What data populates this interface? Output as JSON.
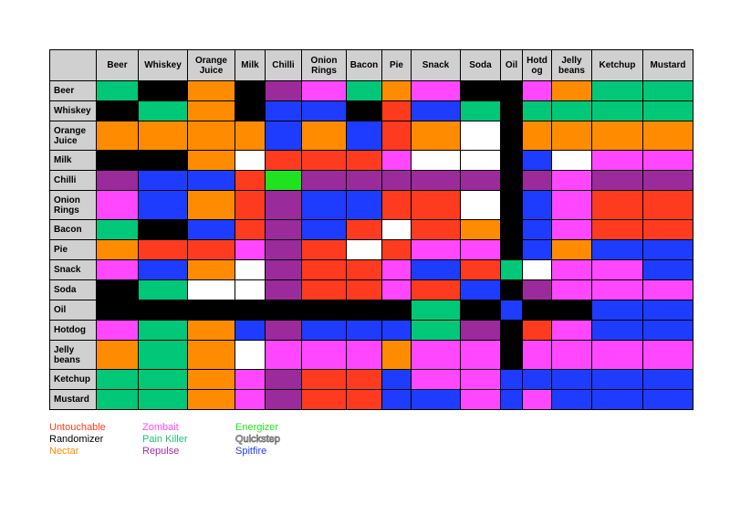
{
  "columns": [
    "Beer",
    "Whiskey",
    "Orange Juice",
    "Milk",
    "Chilli",
    "Onion Rings",
    "Bacon",
    "Pie",
    "Snack",
    "Soda",
    "Oil",
    "Hotdog",
    "Jelly beans",
    "Ketchup",
    "Mustard"
  ],
  "column_labels": [
    "Beer",
    "Whiskey",
    "Orange\nJuice",
    "Milk",
    "Chilli",
    "Onion\nRings",
    "Bacon",
    "Pie",
    "Snack",
    "Soda",
    "Oil",
    "Hotd\nog",
    "Jelly\nbeans",
    "Ketchup",
    "Mustard"
  ],
  "row_labels": [
    "Beer",
    "Whiskey",
    "Orange\nJuice",
    "Milk",
    "Chilli",
    "Onion\nRings",
    "Bacon",
    "Pie",
    "Snack",
    "Soda",
    "Oil",
    "Hotdog",
    "Jelly\nbeans",
    "Ketchup",
    "Mustard"
  ],
  "cells": [
    [
      "Pain Killer",
      "Randomizer",
      "Nectar",
      "Randomizer",
      "Repulse",
      "Zombait",
      "Pain Killer",
      "Nectar",
      "Zombait",
      "Randomizer",
      "Randomizer",
      "Zombait",
      "Nectar",
      "Pain Killer",
      "Pain Killer"
    ],
    [
      "Randomizer",
      "Pain Killer",
      "Nectar",
      "Randomizer",
      "Spitfire",
      "Spitfire",
      "Randomizer",
      "Untouchable",
      "Spitfire",
      "Pain Killer",
      "Randomizer",
      "Pain Killer",
      "Pain Killer",
      "Pain Killer",
      "Pain Killer"
    ],
    [
      "Nectar",
      "Nectar",
      "Nectar",
      "Nectar",
      "Spitfire",
      "Nectar",
      "Spitfire",
      "Untouchable",
      "Nectar",
      "Quickstep",
      "Randomizer",
      "Nectar",
      "Nectar",
      "Nectar",
      "Nectar"
    ],
    [
      "Randomizer",
      "Randomizer",
      "Nectar",
      "Quickstep",
      "Untouchable",
      "Untouchable",
      "Untouchable",
      "Zombait",
      "Quickstep",
      "Quickstep",
      "Randomizer",
      "Spitfire",
      "Quickstep",
      "Zombait",
      "Zombait"
    ],
    [
      "Repulse",
      "Spitfire",
      "Spitfire",
      "Untouchable",
      "Energizer",
      "Repulse",
      "Repulse",
      "Repulse",
      "Repulse",
      "Repulse",
      "Randomizer",
      "Repulse",
      "Zombait",
      "Repulse",
      "Repulse"
    ],
    [
      "Zombait",
      "Spitfire",
      "Nectar",
      "Untouchable",
      "Repulse",
      "Spitfire",
      "Spitfire",
      "Untouchable",
      "Untouchable",
      "Quickstep",
      "Randomizer",
      "Spitfire",
      "Zombait",
      "Untouchable",
      "Untouchable"
    ],
    [
      "Pain Killer",
      "Randomizer",
      "Spitfire",
      "Untouchable",
      "Repulse",
      "Spitfire",
      "Untouchable",
      "Quickstep",
      "Untouchable",
      "Nectar",
      "Randomizer",
      "Spitfire",
      "Zombait",
      "Untouchable",
      "Untouchable"
    ],
    [
      "Nectar",
      "Untouchable",
      "Untouchable",
      "Zombait",
      "Repulse",
      "Untouchable",
      "Quickstep",
      "Untouchable",
      "Zombait",
      "Zombait",
      "Randomizer",
      "Spitfire",
      "Nectar",
      "Spitfire",
      "Spitfire"
    ],
    [
      "Zombait",
      "Spitfire",
      "Nectar",
      "Quickstep",
      "Repulse",
      "Untouchable",
      "Untouchable",
      "Zombait",
      "Spitfire",
      "Untouchable",
      "Pain Killer",
      "Quickstep",
      "Zombait",
      "Zombait",
      "Spitfire"
    ],
    [
      "Randomizer",
      "Pain Killer",
      "Quickstep",
      "Quickstep",
      "Repulse",
      "Untouchable",
      "Untouchable",
      "Zombait",
      "Untouchable",
      "Spitfire",
      "Randomizer",
      "Repulse",
      "Zombait",
      "Zombait",
      "Zombait"
    ],
    [
      "Randomizer",
      "Randomizer",
      "Randomizer",
      "Randomizer",
      "Randomizer",
      "Randomizer",
      "Randomizer",
      "Randomizer",
      "Pain Killer",
      "Randomizer",
      "Spitfire",
      "Randomizer",
      "Randomizer",
      "Spitfire",
      "Spitfire"
    ],
    [
      "Zombait",
      "Pain Killer",
      "Nectar",
      "Spitfire",
      "Repulse",
      "Spitfire",
      "Spitfire",
      "Spitfire",
      "Pain Killer",
      "Repulse",
      "Randomizer",
      "Untouchable",
      "Zombait",
      "Spitfire",
      "Spitfire"
    ],
    [
      "Nectar",
      "Pain Killer",
      "Nectar",
      "Quickstep",
      "Zombait",
      "Zombait",
      "Zombait",
      "Nectar",
      "Zombait",
      "Zombait",
      "Randomizer",
      "Zombait",
      "Zombait",
      "Zombait",
      "Zombait"
    ],
    [
      "Pain Killer",
      "Pain Killer",
      "Nectar",
      "Zombait",
      "Repulse",
      "Untouchable",
      "Untouchable",
      "Spitfire",
      "Zombait",
      "Zombait",
      "Spitfire",
      "Spitfire",
      "Spitfire",
      "Spitfire",
      "Spitfire"
    ],
    [
      "Pain Killer",
      "Pain Killer",
      "Nectar",
      "Zombait",
      "Repulse",
      "Untouchable",
      "Untouchable",
      "Spitfire",
      "Spitfire",
      "Zombait",
      "Spitfire",
      "Zombait",
      "Spitfire",
      "Spitfire",
      "Spitfire"
    ]
  ],
  "legend": [
    {
      "name": "Untouchable",
      "color": "#ff3b1f"
    },
    {
      "name": "Zombait",
      "color": "#ff47ff"
    },
    {
      "name": "Energizer",
      "color": "#1ee31e"
    },
    {
      "name": "Randomizer",
      "color": "#000000"
    },
    {
      "name": "Pain Killer",
      "color": "#1fbf78"
    },
    {
      "name": "Quickstep",
      "color": "#ffffff"
    },
    {
      "name": "Nectar",
      "color": "#ff8c00"
    },
    {
      "name": "Repulse",
      "color": "#a52aa5"
    },
    {
      "name": "Spitfire",
      "color": "#1e3cff"
    }
  ],
  "cell_colors": {
    "Untouchable": "#ff3b1f",
    "Zombait": "#ff47ff",
    "Energizer": "#1ee31e",
    "Randomizer": "#000000",
    "Pain Killer": "#00c878",
    "Quickstep": "#ffffff",
    "Nectar": "#ff8c00",
    "Repulse": "#9b2a9b",
    "Spitfire": "#1e3cff"
  }
}
